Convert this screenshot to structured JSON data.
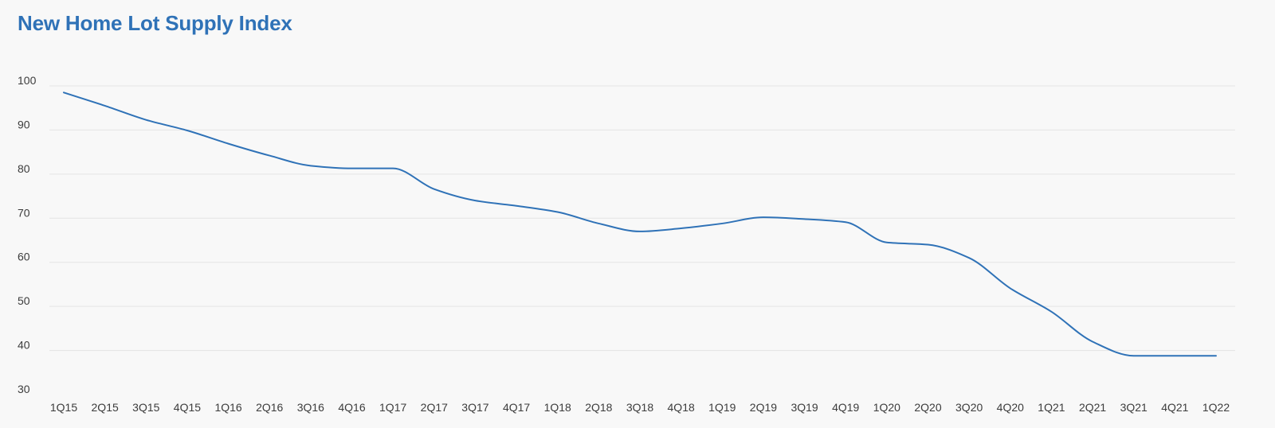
{
  "chart_data": {
    "type": "line",
    "title": "New Home Lot Supply Index",
    "xlabel": "",
    "ylabel": "",
    "categories": [
      "1Q15",
      "2Q15",
      "3Q15",
      "4Q15",
      "1Q16",
      "2Q16",
      "3Q16",
      "4Q16",
      "1Q17",
      "2Q17",
      "3Q17",
      "4Q17",
      "1Q18",
      "2Q18",
      "3Q18",
      "4Q18",
      "1Q19",
      "2Q19",
      "3Q19",
      "4Q19",
      "1Q20",
      "2Q20",
      "3Q20",
      "4Q20",
      "1Q21",
      "2Q21",
      "3Q21",
      "4Q21",
      "1Q22"
    ],
    "series": [
      {
        "values": [
          98.5,
          95.5,
          92.3,
          89.9,
          86.9,
          84.2,
          81.9,
          81.3,
          81.3,
          76.6,
          74.0,
          72.8,
          71.4,
          68.8,
          67.0,
          67.7,
          68.8,
          70.2,
          69.8,
          69.1,
          64.5,
          64.0,
          61.0,
          54.1,
          48.8,
          42.0,
          38.8,
          38.8,
          38.8
        ],
        "color": "#2f72b7"
      }
    ],
    "yticks": [
      100,
      90,
      80,
      70,
      60,
      50,
      40,
      30
    ],
    "ylim": [
      30,
      100
    ],
    "grid": true,
    "legend": "none"
  }
}
